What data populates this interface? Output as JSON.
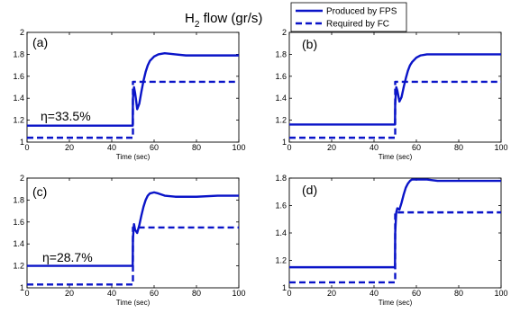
{
  "figure": {
    "title_main": "H",
    "title_sub": "2",
    "title_rest": " flow (gr/s)",
    "colors": {
      "line": "#0a14c8",
      "axis": "#000000"
    }
  },
  "legend": {
    "placement": "top-center",
    "items": [
      {
        "label": "Produced by FPS",
        "style": "solid"
      },
      {
        "label": "Required by  FC",
        "style": "dashed"
      }
    ]
  },
  "chart_data": [
    {
      "type": "line",
      "panel_label": "(a)",
      "annotation": "η=33.5%",
      "xlabel": "Time (sec)",
      "xlim": [
        0,
        100
      ],
      "ylim": [
        1.0,
        2.0
      ],
      "xticks": [
        0,
        20,
        40,
        60,
        80,
        100
      ],
      "yticks": [
        1,
        1.2,
        1.4,
        1.6,
        1.8,
        2
      ],
      "grid": false,
      "series": [
        {
          "name": "Produced by FPS",
          "style": "solid",
          "x": [
            0,
            49.9,
            50,
            50.5,
            51,
            51.5,
            52,
            53,
            54,
            55,
            56,
            57,
            58,
            60,
            62,
            65,
            70,
            75,
            80,
            85,
            90,
            95,
            100
          ],
          "y": [
            1.15,
            1.15,
            1.4,
            1.5,
            1.45,
            1.38,
            1.3,
            1.35,
            1.46,
            1.56,
            1.64,
            1.7,
            1.74,
            1.78,
            1.8,
            1.81,
            1.8,
            1.79,
            1.79,
            1.79,
            1.79,
            1.79,
            1.79
          ]
        },
        {
          "name": "Required by  FC",
          "style": "dashed",
          "x": [
            0,
            50,
            50,
            100
          ],
          "y": [
            1.04,
            1.04,
            1.55,
            1.55
          ]
        }
      ]
    },
    {
      "type": "line",
      "panel_label": "(b)",
      "annotation": "",
      "xlabel": "Time (sec)",
      "xlim": [
        0,
        100
      ],
      "ylim": [
        1.0,
        2.0
      ],
      "xticks": [
        0,
        20,
        40,
        60,
        80,
        100
      ],
      "yticks": [
        1,
        1.2,
        1.4,
        1.6,
        1.8,
        2
      ],
      "grid": false,
      "series": [
        {
          "name": "Produced by FPS",
          "style": "solid",
          "x": [
            0,
            49.9,
            50,
            50.5,
            51,
            52,
            53,
            54,
            55,
            56,
            57,
            58,
            60,
            62,
            65,
            70,
            80,
            90,
            100
          ],
          "y": [
            1.16,
            1.16,
            1.35,
            1.5,
            1.47,
            1.37,
            1.41,
            1.5,
            1.58,
            1.65,
            1.7,
            1.73,
            1.77,
            1.79,
            1.8,
            1.8,
            1.8,
            1.8,
            1.8
          ]
        },
        {
          "name": "Required by  FC",
          "style": "dashed",
          "x": [
            0,
            50,
            50,
            100
          ],
          "y": [
            1.04,
            1.04,
            1.55,
            1.55
          ]
        }
      ]
    },
    {
      "type": "line",
      "panel_label": "(c)",
      "annotation": "η=28.7%",
      "xlabel": "Time (sec)",
      "xlim": [
        0,
        100
      ],
      "ylim": [
        1.0,
        2.0
      ],
      "xticks": [
        0,
        20,
        40,
        60,
        80,
        100
      ],
      "yticks": [
        1,
        1.2,
        1.4,
        1.6,
        1.8,
        2
      ],
      "grid": false,
      "series": [
        {
          "name": "Produced by FPS",
          "style": "solid",
          "x": [
            0,
            49.9,
            50,
            50.5,
            51,
            52,
            53,
            54,
            55,
            56,
            57,
            58,
            60,
            62,
            65,
            70,
            75,
            80,
            90,
            100
          ],
          "y": [
            1.2,
            1.2,
            1.45,
            1.58,
            1.53,
            1.5,
            1.57,
            1.66,
            1.74,
            1.8,
            1.84,
            1.86,
            1.87,
            1.86,
            1.84,
            1.83,
            1.83,
            1.83,
            1.84,
            1.84
          ]
        },
        {
          "name": "Required by  FC",
          "style": "dashed",
          "x": [
            0,
            50,
            50,
            100
          ],
          "y": [
            1.03,
            1.03,
            1.55,
            1.55
          ]
        }
      ]
    },
    {
      "type": "line",
      "panel_label": "(d)",
      "annotation": "",
      "xlabel": "Time (sec)",
      "xlim": [
        0,
        100
      ],
      "ylim": [
        1.0,
        1.8
      ],
      "xticks": [
        0,
        20,
        40,
        60,
        80,
        100
      ],
      "yticks": [
        1,
        1.2,
        1.4,
        1.6,
        1.8
      ],
      "grid": false,
      "series": [
        {
          "name": "Produced by FPS",
          "style": "solid",
          "x": [
            0,
            49.9,
            50,
            50.5,
            51,
            52,
            53,
            54,
            55,
            56,
            57,
            58,
            60,
            65,
            70,
            80,
            90,
            100
          ],
          "y": [
            1.15,
            1.15,
            1.4,
            1.55,
            1.58,
            1.57,
            1.62,
            1.68,
            1.73,
            1.76,
            1.78,
            1.79,
            1.79,
            1.79,
            1.78,
            1.78,
            1.78,
            1.78
          ]
        },
        {
          "name": "Required by  FC",
          "style": "dashed",
          "x": [
            0,
            50,
            50,
            100
          ],
          "y": [
            1.04,
            1.04,
            1.55,
            1.55
          ]
        }
      ]
    }
  ]
}
